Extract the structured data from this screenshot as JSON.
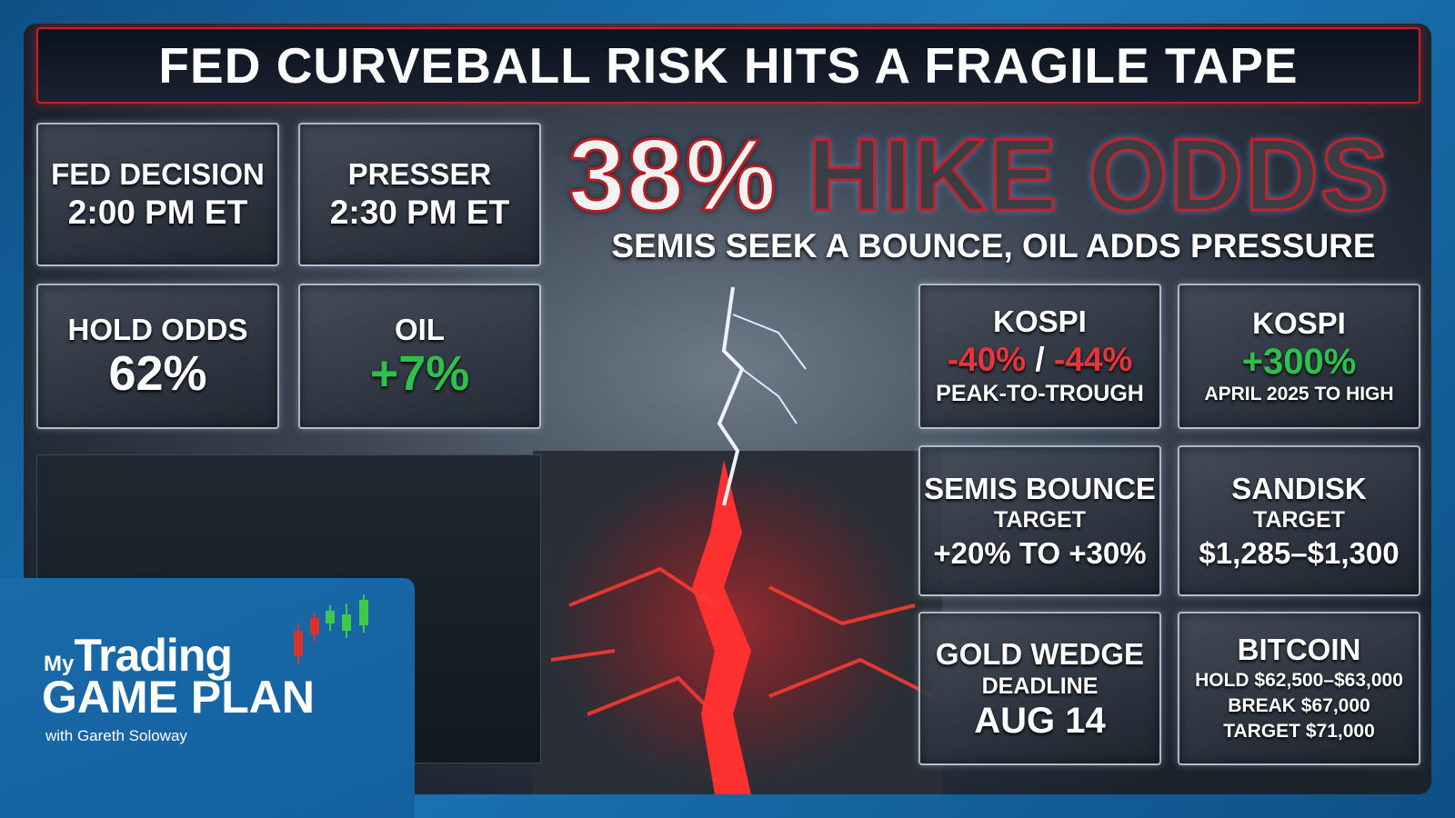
{
  "header": {
    "title": "FED CURVEBALL RISK HITS A FRAGILE TAPE"
  },
  "headline": {
    "figure": "38%",
    "text": "HIKE ODDS",
    "subtitle": "SEMIS SEEK A BOUNCE, OIL ADDS PRESSURE"
  },
  "left_tiles": [
    {
      "label": "FED DECISION",
      "value": "2:00 PM ET"
    },
    {
      "label": "PRESSER",
      "value": "2:30 PM ET"
    },
    {
      "label": "HOLD ODDS",
      "value": "62%"
    },
    {
      "label": "OIL",
      "value": "+7%"
    }
  ],
  "right_tiles": [
    {
      "label": "KOSPI",
      "lines": [
        "-40%",
        "/",
        "-44%",
        "PEAK-TO-TROUGH"
      ]
    },
    {
      "label": "KOSPI",
      "lines": [
        "+300%",
        "APRIL 2025 TO HIGH"
      ]
    },
    {
      "label": "SEMIS BOUNCE",
      "lines": [
        "TARGET",
        "+20% TO +30%"
      ]
    },
    {
      "label": "SANDISK",
      "lines": [
        "TARGET",
        "$1,285–$1,300"
      ]
    },
    {
      "label": "GOLD WEDGE",
      "lines": [
        "DEADLINE",
        "AUG 14"
      ]
    },
    {
      "label": "BITCOIN",
      "lines": [
        "HOLD $62,500–$63,000",
        "BREAK $67,000",
        "TARGET $71,000"
      ]
    }
  ],
  "logo": {
    "prefix": "My",
    "brand": "Trading",
    "product": "GAME PLAN",
    "byline": "with Gareth Soloway"
  }
}
